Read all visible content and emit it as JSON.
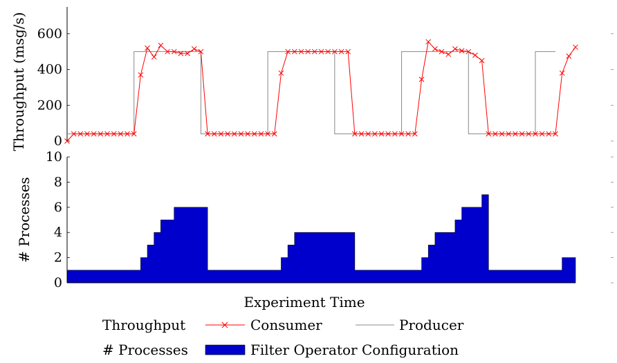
{
  "chart_data": [
    {
      "type": "line",
      "ylabel": "Throughput (msg/s)",
      "ylim": [
        0,
        750
      ],
      "yticks": [
        "0",
        "200",
        "400",
        "600"
      ],
      "series": [
        {
          "name": "Consumer",
          "color": "#ff0000",
          "marker": "x",
          "values": [
            0,
            40,
            40,
            40,
            40,
            40,
            40,
            40,
            40,
            40,
            40,
            370,
            520,
            470,
            535,
            500,
            500,
            490,
            490,
            515,
            500,
            40,
            40,
            40,
            40,
            40,
            40,
            40,
            40,
            40,
            40,
            40,
            380,
            500,
            500,
            500,
            500,
            500,
            500,
            500,
            500,
            500,
            500,
            40,
            40,
            40,
            40,
            40,
            40,
            40,
            40,
            40,
            40,
            345,
            555,
            515,
            500,
            485,
            515,
            505,
            500,
            480,
            450,
            40,
            40,
            40,
            40,
            40,
            40,
            40,
            40,
            40,
            40,
            40,
            380,
            475,
            525
          ]
        },
        {
          "name": "Producer",
          "color": "#888888",
          "steps": [
            [
              0,
              40
            ],
            [
              10,
              500
            ],
            [
              20,
              40
            ],
            [
              30,
              500
            ],
            [
              40,
              40
            ],
            [
              50,
              500
            ],
            [
              60,
              40
            ],
            [
              70,
              500
            ],
            [
              73,
              500
            ]
          ]
        }
      ]
    },
    {
      "type": "area",
      "ylabel": "# Processes",
      "ylim": [
        0,
        10
      ],
      "yticks": [
        "0",
        "2",
        "4",
        "6",
        "8",
        "10"
      ],
      "series": [
        {
          "name": "Filter Operator Configuration",
          "color": "#0000cc",
          "values": [
            1,
            1,
            1,
            1,
            1,
            1,
            1,
            1,
            1,
            1,
            1,
            2,
            3,
            4,
            5,
            5,
            6,
            6,
            6,
            6,
            6,
            1,
            1,
            1,
            1,
            1,
            1,
            1,
            1,
            1,
            1,
            1,
            2,
            3,
            4,
            4,
            4,
            4,
            4,
            4,
            4,
            4,
            4,
            1,
            1,
            1,
            1,
            1,
            1,
            1,
            1,
            1,
            1,
            2,
            3,
            4,
            4,
            4,
            5,
            6,
            6,
            6,
            7,
            1,
            1,
            1,
            1,
            1,
            1,
            1,
            1,
            1,
            1,
            1,
            2,
            2,
            2
          ]
        }
      ]
    }
  ],
  "xlabel": "Experiment Time",
  "legend": {
    "row1_label": "Throughput",
    "consumer": "Consumer",
    "producer": "Producer",
    "row2_label": "# Processes",
    "filter": "Filter Operator Configuration"
  }
}
